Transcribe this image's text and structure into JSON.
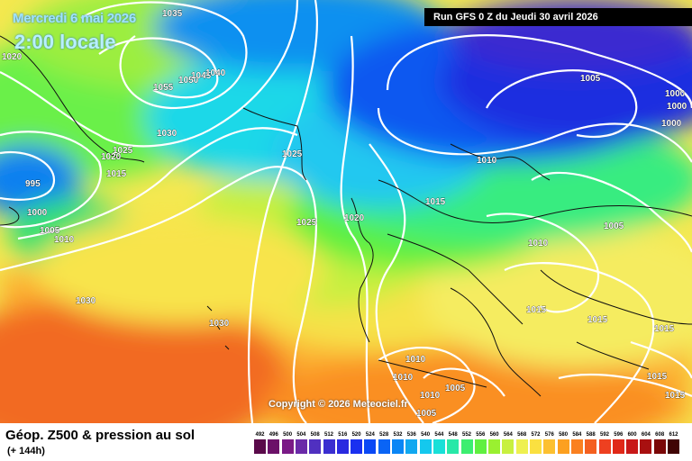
{
  "header": {
    "date_title": "Mercredi 6 mai 2026",
    "time_title": "2:00 locale",
    "run_info": "Run GFS 0 Z du Jeudi 30 avril 2026"
  },
  "copyright": "Copyright © 2026 Meteociel.fr",
  "footer": {
    "title": "Géop. Z500 & pression au sol",
    "subtitle": "(+ 144h)"
  },
  "isobar_labels": [
    "1035",
    "1020",
    "1055",
    "1050",
    "1045",
    "1040",
    "1030",
    "1025",
    "1015",
    "1025",
    "1020",
    "995",
    "1000",
    "1005",
    "1010",
    "1025",
    "1020",
    "1015",
    "1010",
    "1005",
    "1000",
    "1000",
    "1000",
    "1030",
    "1030",
    "1005",
    "1010",
    "1015",
    "1015",
    "1015",
    "1015",
    "1015",
    "1010",
    "1010",
    "1005",
    "1005",
    "1010"
  ],
  "legend_scale": [
    {
      "value": "492",
      "color": "#5a0a4a"
    },
    {
      "value": "496",
      "color": "#6b1168"
    },
    {
      "value": "500",
      "color": "#7a1a86"
    },
    {
      "value": "504",
      "color": "#6a2aa8"
    },
    {
      "value": "508",
      "color": "#5030c0"
    },
    {
      "value": "512",
      "color": "#3a2ed0"
    },
    {
      "value": "516",
      "color": "#2a2ae0"
    },
    {
      "value": "520",
      "color": "#1a30f0"
    },
    {
      "value": "524",
      "color": "#0a48f5"
    },
    {
      "value": "528",
      "color": "#0a64f5"
    },
    {
      "value": "532",
      "color": "#0a86f5"
    },
    {
      "value": "536",
      "color": "#10a8f0"
    },
    {
      "value": "540",
      "color": "#14c8ee"
    },
    {
      "value": "544",
      "color": "#18e0d8"
    },
    {
      "value": "548",
      "color": "#28e8a8"
    },
    {
      "value": "552",
      "color": "#3cee70"
    },
    {
      "value": "556",
      "color": "#60f040"
    },
    {
      "value": "560",
      "color": "#9af030"
    },
    {
      "value": "564",
      "color": "#c8f040"
    },
    {
      "value": "568",
      "color": "#eef050"
    },
    {
      "value": "572",
      "color": "#fae040"
    },
    {
      "value": "576",
      "color": "#fcc030"
    },
    {
      "value": "580",
      "color": "#fca020"
    },
    {
      "value": "584",
      "color": "#fa8020"
    },
    {
      "value": "588",
      "color": "#f46020"
    },
    {
      "value": "592",
      "color": "#ee4020"
    },
    {
      "value": "596",
      "color": "#e02818"
    },
    {
      "value": "600",
      "color": "#c81818"
    },
    {
      "value": "604",
      "color": "#a81010"
    },
    {
      "value": "608",
      "color": "#7a0808"
    },
    {
      "value": "612",
      "color": "#400404"
    }
  ]
}
